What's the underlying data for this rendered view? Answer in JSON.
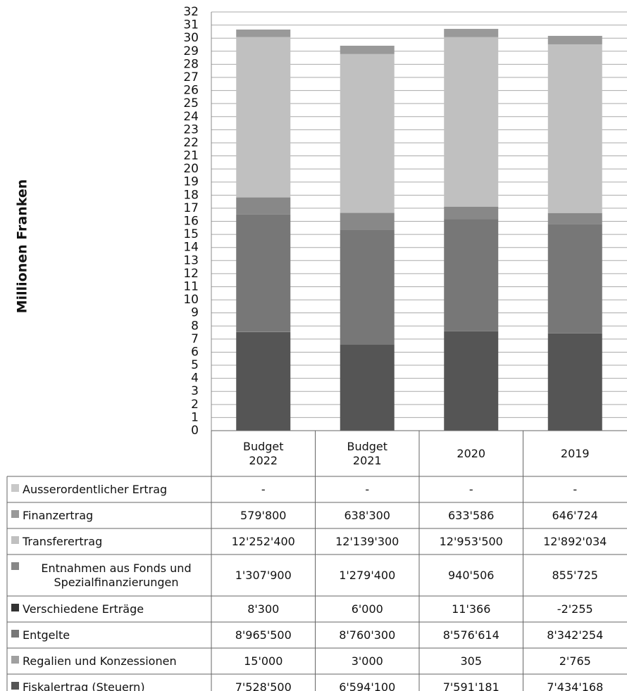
{
  "chart_data": {
    "type": "bar",
    "stacked": true,
    "y_label": "Millionen Franken",
    "categories": [
      "Budget 2022",
      "Budget 2021",
      "2020",
      "2019"
    ],
    "ylim": [
      0,
      32
    ],
    "yticks": [
      0,
      1,
      2,
      3,
      4,
      5,
      6,
      7,
      8,
      9,
      10,
      11,
      12,
      13,
      14,
      15,
      16,
      17,
      18,
      19,
      20,
      21,
      22,
      23,
      24,
      25,
      26,
      27,
      28,
      29,
      30,
      31,
      32
    ],
    "grid": true,
    "series": [
      {
        "name": "Fiskalertrag (Steuern)",
        "color": "#555555",
        "values": [
          7.5285,
          6.5941,
          7.591181,
          7.434168
        ],
        "value_labels": [
          "7'528'500",
          "6'594'100",
          "7'591'181",
          "7'434'168"
        ]
      },
      {
        "name": "Regalien und Konzessionen",
        "color": "#a0a0a0",
        "values": [
          0.015,
          0.003,
          0.000305,
          0.002765
        ],
        "value_labels": [
          "15'000",
          "3'000",
          "305",
          "2'765"
        ]
      },
      {
        "name": "Entgelte",
        "color": "#777777",
        "values": [
          8.9655,
          8.7603,
          8.576614,
          8.342254
        ],
        "value_labels": [
          "8'965'500",
          "8'760'300",
          "8'576'614",
          "8'342'254"
        ]
      },
      {
        "name": "Verschiedene Erträge",
        "color": "#333333",
        "values": [
          0.0083,
          0.006,
          0.011366,
          -0.002255
        ],
        "value_labels": [
          "8'300",
          "6'000",
          "11'366",
          "-2'255"
        ]
      },
      {
        "name": "Entnahmen aus Fonds und Spezialfinanzierungen",
        "color": "#888888",
        "values": [
          1.3079,
          1.2794,
          0.940506,
          0.855725
        ],
        "value_labels": [
          "1'307'900",
          "1'279'400",
          "940'506",
          "855'725"
        ]
      },
      {
        "name": "Transferertrag",
        "color": "#c0c0c0",
        "values": [
          12.2524,
          12.1393,
          12.9535,
          12.892034
        ],
        "value_labels": [
          "12'252'400",
          "12'139'300",
          "12'953'500",
          "12'892'034"
        ]
      },
      {
        "name": "Finanzertrag",
        "color": "#999999",
        "values": [
          0.5798,
          0.6383,
          0.633586,
          0.646724
        ],
        "value_labels": [
          "579'800",
          "638'300",
          "633'586",
          "646'724"
        ]
      },
      {
        "name": "Ausserordentlicher Ertrag",
        "color": "#c8c8c8",
        "values": [
          null,
          null,
          null,
          null
        ],
        "value_labels": [
          "-",
          "-",
          "-",
          "-"
        ]
      }
    ]
  }
}
